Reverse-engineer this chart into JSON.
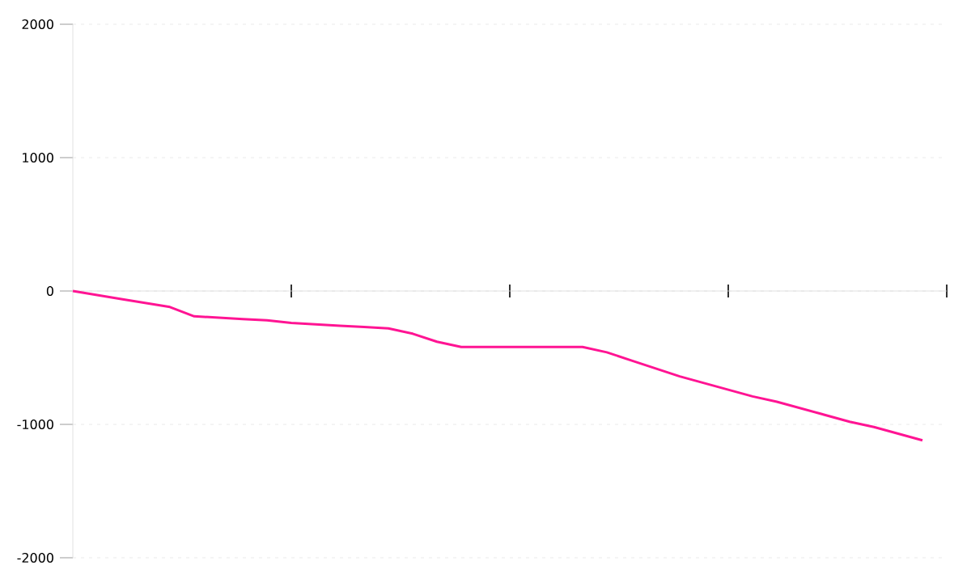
{
  "chart_data": {
    "type": "line",
    "categories": [
      null,
      null,
      null,
      null,
      null,
      null,
      null,
      null,
      null,
      null,
      null,
      null,
      null,
      null,
      null,
      null,
      null,
      null,
      null,
      null,
      null,
      null,
      null,
      null,
      null,
      null,
      null,
      null,
      null,
      null,
      null,
      null,
      null,
      null,
      null,
      null,
      null
    ],
    "series": [
      {
        "color": "#ff1493",
        "values": [
          0,
          -30,
          -60,
          -90,
          -120,
          -190,
          -200,
          -210,
          -220,
          -240,
          -250,
          -260,
          -270,
          -280,
          -320,
          -380,
          -420,
          -420,
          -420,
          -420,
          -420,
          -420,
          -460,
          -520,
          -580,
          -640,
          -690,
          -740,
          -790,
          -830,
          -880,
          -930,
          -980,
          -1020,
          -1070,
          -1120,
          null
        ]
      }
    ],
    "ylim": [
      -2000,
      2000
    ],
    "yticks": [
      -2000,
      -1000,
      0,
      1000,
      2000
    ],
    "grid": "y",
    "tick_labels": "y",
    "marker": "none",
    "line_style": "solid"
  }
}
